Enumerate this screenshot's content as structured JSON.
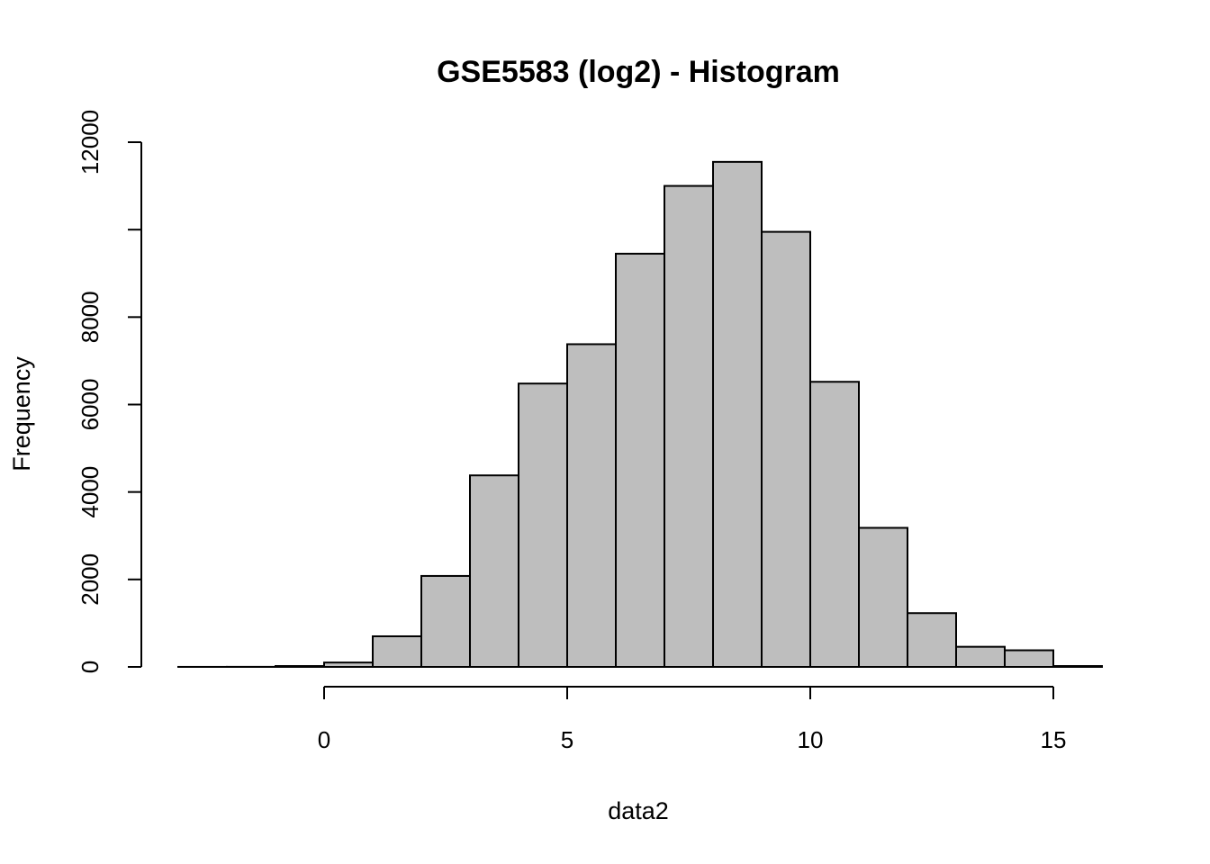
{
  "chart_data": {
    "type": "bar",
    "title": "GSE5583 (log2) - Histogram",
    "xlabel": "data2",
    "ylabel": "Frequency",
    "bin_width": 1,
    "bins": [
      {
        "x0": -3,
        "x1": -2,
        "count": 1
      },
      {
        "x0": -2,
        "x1": -1,
        "count": 2
      },
      {
        "x0": -1,
        "x1": 0,
        "count": 20
      },
      {
        "x0": 0,
        "x1": 1,
        "count": 100
      },
      {
        "x0": 1,
        "x1": 2,
        "count": 700
      },
      {
        "x0": 2,
        "x1": 3,
        "count": 2080
      },
      {
        "x0": 3,
        "x1": 4,
        "count": 4380
      },
      {
        "x0": 4,
        "x1": 5,
        "count": 6480
      },
      {
        "x0": 5,
        "x1": 6,
        "count": 7380
      },
      {
        "x0": 6,
        "x1": 7,
        "count": 9450
      },
      {
        "x0": 7,
        "x1": 8,
        "count": 11000
      },
      {
        "x0": 8,
        "x1": 9,
        "count": 11550
      },
      {
        "x0": 9,
        "x1": 10,
        "count": 9950
      },
      {
        "x0": 10,
        "x1": 11,
        "count": 6520
      },
      {
        "x0": 11,
        "x1": 12,
        "count": 3180
      },
      {
        "x0": 12,
        "x1": 13,
        "count": 1230
      },
      {
        "x0": 13,
        "x1": 14,
        "count": 460
      },
      {
        "x0": 14,
        "x1": 15,
        "count": 380
      },
      {
        "x0": 15,
        "x1": 16,
        "count": 20
      }
    ],
    "xlim": [
      -3,
      16
    ],
    "ylim": [
      0,
      12000
    ],
    "x_ticks": [
      0,
      5,
      10,
      15
    ],
    "x_tick_labels": [
      "0",
      "5",
      "10",
      "15"
    ],
    "y_ticks": [
      0,
      2000,
      4000,
      6000,
      8000,
      10000,
      12000
    ],
    "y_tick_labels": [
      "0",
      "2000",
      "4000",
      "6000",
      "8000",
      "",
      "12000"
    ],
    "grid": false,
    "legend": "none",
    "colors": {
      "bar_fill": "#bebebe",
      "bar_stroke": "#000000"
    }
  }
}
